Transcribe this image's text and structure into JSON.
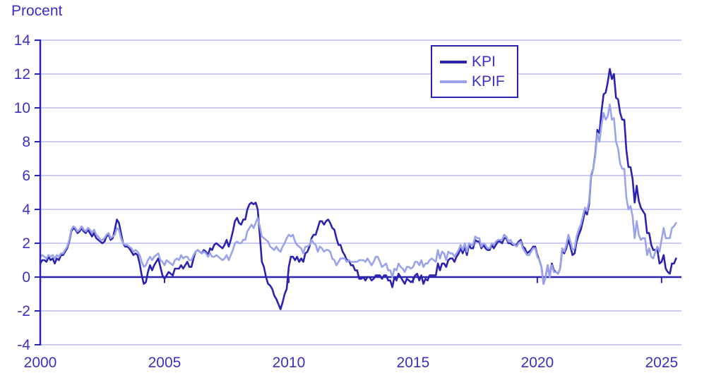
{
  "colors": {
    "text": "#3b2fc4",
    "kpi_line": "#2c22b0",
    "kpif_line": "#9aa3e9",
    "grid": "#ccccf0",
    "axis": "#2c22b0",
    "background": "#ffffff"
  },
  "legend": {
    "items": [
      {
        "label": "KPI"
      },
      {
        "label": "KPIF"
      }
    ]
  },
  "chart_data": {
    "type": "line",
    "title": "",
    "y_axis_title": "Procent",
    "xlabel": "",
    "ylabel": "Procent",
    "x_unit": "year, monthly data",
    "x_start_year": 2000,
    "x_interval_months": 1,
    "xlim": [
      2000,
      2025.8
    ],
    "ylim": [
      -4,
      14
    ],
    "x_ticks": [
      2000,
      2005,
      2010,
      2015,
      2020,
      2025
    ],
    "y_ticks": [
      -4,
      -2,
      0,
      2,
      4,
      6,
      8,
      10,
      12,
      14
    ],
    "grid": "horizontal",
    "legend_position": "top-right",
    "series": [
      {
        "name": "KPI",
        "color": "#2c22b0",
        "values": [
          0.8,
          1.0,
          1.0,
          0.9,
          1.2,
          1.0,
          1.1,
          0.8,
          1.1,
          1.0,
          1.3,
          1.3,
          1.5,
          1.7,
          2.1,
          2.7,
          2.9,
          2.8,
          2.6,
          2.7,
          2.9,
          2.7,
          2.6,
          2.8,
          2.6,
          2.4,
          2.6,
          2.3,
          2.2,
          2.1,
          2.0,
          2.1,
          2.4,
          2.5,
          2.2,
          2.3,
          2.8,
          3.4,
          3.2,
          2.6,
          2.0,
          1.8,
          1.8,
          1.7,
          1.5,
          1.3,
          1.4,
          1.3,
          0.8,
          0.1,
          -0.4,
          -0.3,
          0.3,
          0.7,
          0.4,
          0.7,
          0.9,
          1.1,
          0.6,
          0.1,
          -0.1,
          0.1,
          0.3,
          0.2,
          0.1,
          0.5,
          0.5,
          0.5,
          0.7,
          0.5,
          0.7,
          0.9,
          0.6,
          0.6,
          1.1,
          1.5,
          1.6,
          1.5,
          1.4,
          1.6,
          1.5,
          1.3,
          1.7,
          1.6,
          1.9,
          2.0,
          1.9,
          1.8,
          1.7,
          1.9,
          2.2,
          1.8,
          2.2,
          2.7,
          3.3,
          3.5,
          3.2,
          3.1,
          3.4,
          3.4,
          4.0,
          4.3,
          4.4,
          4.3,
          4.4,
          4.0,
          2.5,
          0.9,
          0.6,
          0.0,
          -0.4,
          -0.5,
          -0.7,
          -1.1,
          -1.3,
          -1.6,
          -1.9,
          -1.5,
          -1.0,
          -0.7,
          0.6,
          1.2,
          1.2,
          1.0,
          1.2,
          0.9,
          1.1,
          0.9,
          1.4,
          1.5,
          1.8,
          2.3,
          2.5,
          2.5,
          2.9,
          3.3,
          3.3,
          3.1,
          3.3,
          3.4,
          3.2,
          2.9,
          2.8,
          2.3,
          1.9,
          1.9,
          1.5,
          1.3,
          1.0,
          1.0,
          0.7,
          0.7,
          0.4,
          0.4,
          -0.1,
          -0.1,
          0.0,
          -0.2,
          0.0,
          0.0,
          -0.2,
          -0.1,
          0.1,
          0.1,
          0.1,
          -0.1,
          0.1,
          0.1,
          -0.2,
          -0.2,
          -0.6,
          0.0,
          -0.2,
          0.2,
          0.0,
          -0.2,
          -0.4,
          -0.1,
          -0.2,
          -0.3,
          -0.2,
          0.1,
          0.2,
          -0.2,
          0.1,
          -0.4,
          -0.1,
          -0.2,
          0.1,
          0.1,
          0.1,
          0.1,
          0.8,
          0.4,
          0.8,
          0.8,
          0.6,
          1.0,
          1.1,
          1.1,
          0.9,
          1.2,
          1.4,
          1.7,
          1.4,
          1.8,
          1.3,
          1.9,
          1.7,
          1.7,
          2.2,
          2.1,
          2.1,
          1.7,
          1.9,
          1.7,
          1.6,
          1.6,
          1.9,
          1.7,
          1.9,
          2.1,
          2.1,
          2.0,
          2.3,
          2.3,
          2.0,
          2.0,
          1.9,
          1.9,
          1.9,
          2.1,
          2.2,
          1.8,
          1.7,
          1.4,
          1.5,
          1.6,
          1.8,
          1.8,
          1.3,
          1.0,
          0.6,
          -0.4,
          0.0,
          0.7,
          0.0,
          0.8,
          0.4,
          0.3,
          0.2,
          0.5,
          1.6,
          1.4,
          1.7,
          2.2,
          1.8,
          1.3,
          1.4,
          2.1,
          2.5,
          2.8,
          3.3,
          3.9,
          3.7,
          4.3,
          6.0,
          6.4,
          7.3,
          8.7,
          8.5,
          9.8,
          10.8,
          10.9,
          11.5,
          12.3,
          11.7,
          12.0,
          10.6,
          10.5,
          9.7,
          9.3,
          9.3,
          7.5,
          6.5,
          6.5,
          5.8,
          4.4,
          5.4,
          4.5,
          4.1,
          3.9,
          3.7,
          2.6,
          2.6,
          1.9,
          1.6,
          1.6,
          1.6,
          0.8,
          0.9,
          1.3,
          0.5,
          0.3,
          0.2,
          0.8,
          0.8,
          1.1
        ]
      },
      {
        "name": "KPIF",
        "color": "#9aa3e9",
        "values": [
          1.2,
          1.3,
          1.2,
          1.1,
          1.3,
          1.2,
          1.3,
          1.1,
          1.3,
          1.2,
          1.4,
          1.4,
          1.6,
          1.8,
          2.2,
          2.8,
          3.0,
          2.9,
          2.7,
          2.8,
          3.0,
          2.8,
          2.7,
          2.9,
          2.8,
          2.6,
          2.8,
          2.5,
          2.4,
          2.2,
          2.2,
          2.3,
          2.5,
          2.6,
          2.3,
          2.4,
          2.5,
          2.9,
          2.8,
          2.3,
          2.0,
          1.9,
          1.9,
          1.8,
          1.7,
          1.5,
          1.6,
          1.5,
          1.3,
          0.9,
          0.6,
          0.7,
          1.0,
          1.2,
          1.0,
          1.2,
          1.3,
          1.4,
          1.0,
          0.9,
          0.7,
          1.0,
          0.9,
          0.8,
          0.7,
          1.0,
          1.1,
          1.0,
          1.3,
          1.1,
          1.2,
          1.2,
          1.0,
          1.0,
          1.3,
          1.5,
          1.6,
          1.5,
          1.4,
          1.5,
          1.4,
          1.2,
          1.4,
          1.2,
          1.2,
          1.3,
          1.2,
          1.1,
          1.0,
          1.1,
          1.3,
          1.0,
          1.3,
          1.6,
          2.0,
          2.1,
          2.0,
          2.0,
          2.2,
          2.2,
          2.7,
          2.9,
          3.1,
          2.9,
          3.2,
          3.5,
          3.0,
          2.4,
          2.3,
          2.2,
          2.1,
          1.8,
          1.7,
          1.6,
          1.8,
          1.6,
          1.5,
          1.8,
          2.0,
          2.3,
          2.5,
          2.4,
          2.5,
          2.1,
          1.9,
          1.8,
          1.7,
          1.4,
          1.8,
          1.8,
          1.9,
          2.2,
          2.0,
          1.9,
          1.5,
          1.8,
          1.7,
          1.5,
          1.6,
          1.6,
          1.5,
          1.1,
          1.0,
          0.7,
          0.9,
          1.1,
          1.1,
          1.1,
          0.9,
          1.0,
          0.9,
          0.9,
          0.9,
          0.9,
          1.0,
          1.0,
          1.0,
          0.9,
          1.1,
          0.9,
          0.7,
          0.9,
          1.2,
          1.2,
          0.9,
          0.6,
          0.7,
          0.8,
          0.4,
          0.4,
          0.0,
          0.5,
          0.4,
          0.8,
          0.6,
          0.5,
          0.3,
          0.6,
          0.6,
          0.5,
          0.6,
          0.9,
          0.9,
          0.7,
          1.0,
          0.6,
          0.8,
          0.8,
          1.0,
          1.1,
          1.0,
          0.9,
          1.6,
          1.1,
          1.5,
          1.4,
          1.0,
          1.5,
          1.4,
          1.4,
          1.2,
          1.4,
          1.6,
          1.9,
          1.6,
          2.0,
          1.5,
          2.0,
          1.9,
          1.9,
          2.4,
          2.3,
          2.3,
          1.8,
          2.0,
          1.9,
          1.7,
          1.7,
          2.0,
          1.9,
          2.1,
          2.2,
          2.2,
          2.2,
          2.5,
          2.4,
          2.1,
          2.2,
          2.0,
          1.9,
          1.8,
          2.0,
          2.1,
          1.7,
          1.5,
          1.3,
          1.3,
          1.5,
          1.7,
          1.7,
          1.2,
          1.0,
          0.6,
          -0.4,
          0.0,
          0.7,
          0.0,
          0.7,
          0.3,
          0.3,
          0.2,
          0.5,
          1.7,
          1.5,
          1.9,
          2.5,
          2.1,
          1.6,
          1.7,
          2.4,
          2.8,
          3.1,
          3.6,
          4.1,
          3.9,
          4.5,
          6.1,
          6.4,
          7.2,
          8.5,
          8.0,
          9.0,
          9.7,
          9.3,
          9.5,
          10.2,
          9.3,
          9.4,
          8.0,
          7.6,
          6.7,
          6.4,
          6.4,
          4.7,
          4.0,
          4.2,
          3.6,
          2.3,
          3.3,
          2.5,
          2.2,
          2.3,
          2.3,
          1.3,
          1.7,
          1.2,
          1.1,
          1.5,
          1.8,
          1.5,
          2.2,
          2.9,
          2.3,
          2.3,
          2.3,
          2.9,
          3.0,
          3.2
        ]
      }
    ]
  }
}
